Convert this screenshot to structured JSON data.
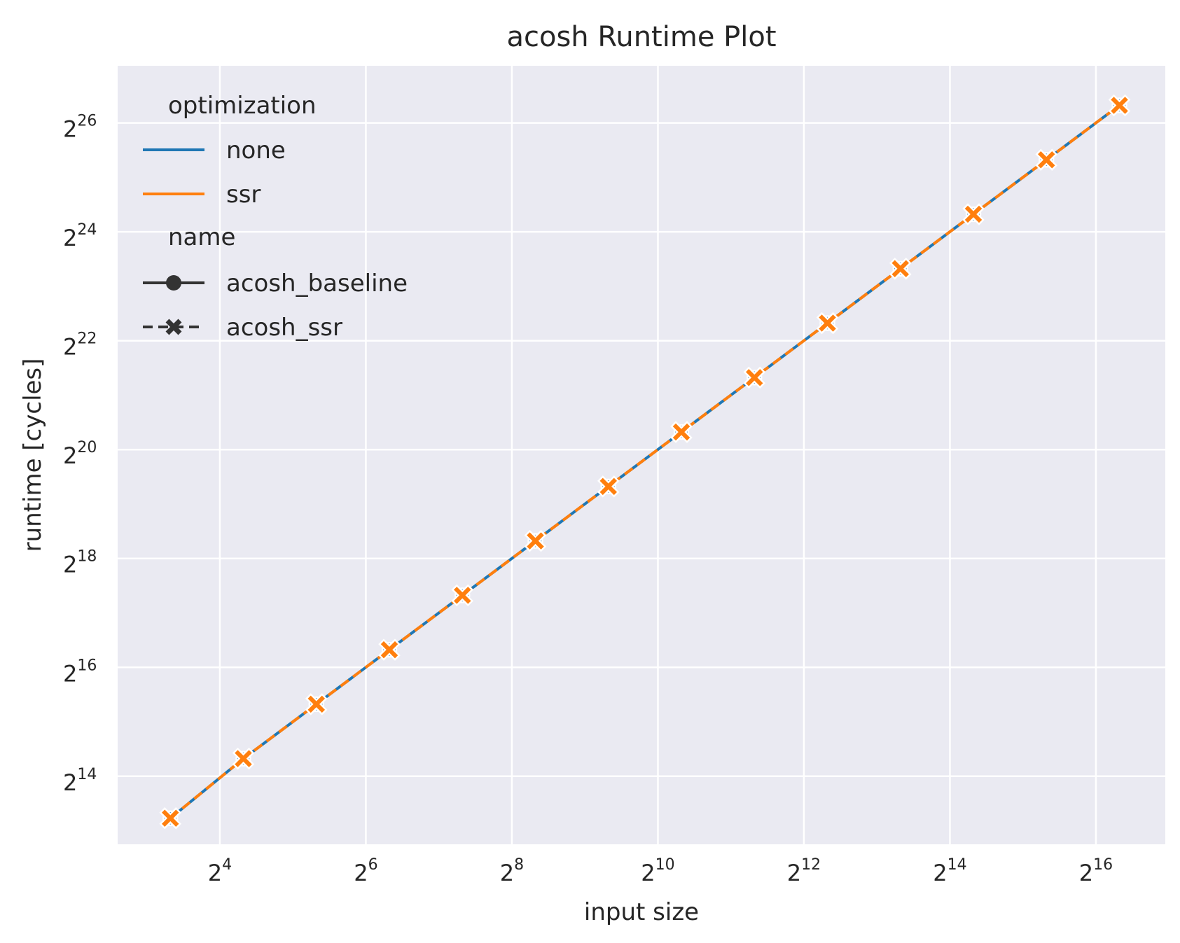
{
  "chart_data": {
    "type": "line",
    "title": "acosh Runtime Plot",
    "xlabel": "input size",
    "ylabel": "runtime [cycles]",
    "x_scale": "log2",
    "y_scale": "log2",
    "x_ticks": [
      {
        "base": "2",
        "exp": "4"
      },
      {
        "base": "2",
        "exp": "6"
      },
      {
        "base": "2",
        "exp": "8"
      },
      {
        "base": "2",
        "exp": "10"
      },
      {
        "base": "2",
        "exp": "12"
      },
      {
        "base": "2",
        "exp": "14"
      },
      {
        "base": "2",
        "exp": "16"
      }
    ],
    "y_ticks": [
      {
        "base": "2",
        "exp": "14"
      },
      {
        "base": "2",
        "exp": "16"
      },
      {
        "base": "2",
        "exp": "18"
      },
      {
        "base": "2",
        "exp": "20"
      },
      {
        "base": "2",
        "exp": "22"
      },
      {
        "base": "2",
        "exp": "24"
      },
      {
        "base": "2",
        "exp": "26"
      }
    ],
    "grid": true,
    "legend_position": "top-left",
    "x": [
      10,
      20,
      40,
      80,
      160,
      320,
      640,
      1280,
      2560,
      5120,
      10240,
      20480,
      40960,
      81920
    ],
    "series": [
      {
        "name": "acosh_baseline",
        "optimization": "none",
        "color": "#1f77b4",
        "marker": "circle",
        "dashed": false,
        "values": [
          9600,
          20500,
          41000,
          82000,
          164000,
          328000,
          656000,
          1312000,
          2624000,
          5248000,
          10496000,
          20992000,
          41984000,
          83968000
        ]
      },
      {
        "name": "acosh_ssr",
        "optimization": "ssr",
        "color": "#ff7f0e",
        "marker": "x",
        "dashed": true,
        "values": [
          9600,
          20500,
          41000,
          82000,
          164000,
          328000,
          656000,
          1312000,
          2624000,
          5248000,
          10496000,
          20992000,
          41984000,
          83968000
        ]
      }
    ],
    "legend": {
      "hue_title": "optimization",
      "hue_entries": [
        {
          "label": "none",
          "color": "#1f77b4"
        },
        {
          "label": "ssr",
          "color": "#ff7f0e"
        }
      ],
      "style_title": "name",
      "style_entries": [
        {
          "label": "acosh_baseline",
          "marker": "circle",
          "dashed": false
        },
        {
          "label": "acosh_ssr",
          "marker": "x",
          "dashed": true
        }
      ]
    },
    "colors": {
      "plot_background": "#eaeaf2",
      "grid": "#ffffff",
      "text": "#262626",
      "legend_marker": "#333333"
    }
  }
}
